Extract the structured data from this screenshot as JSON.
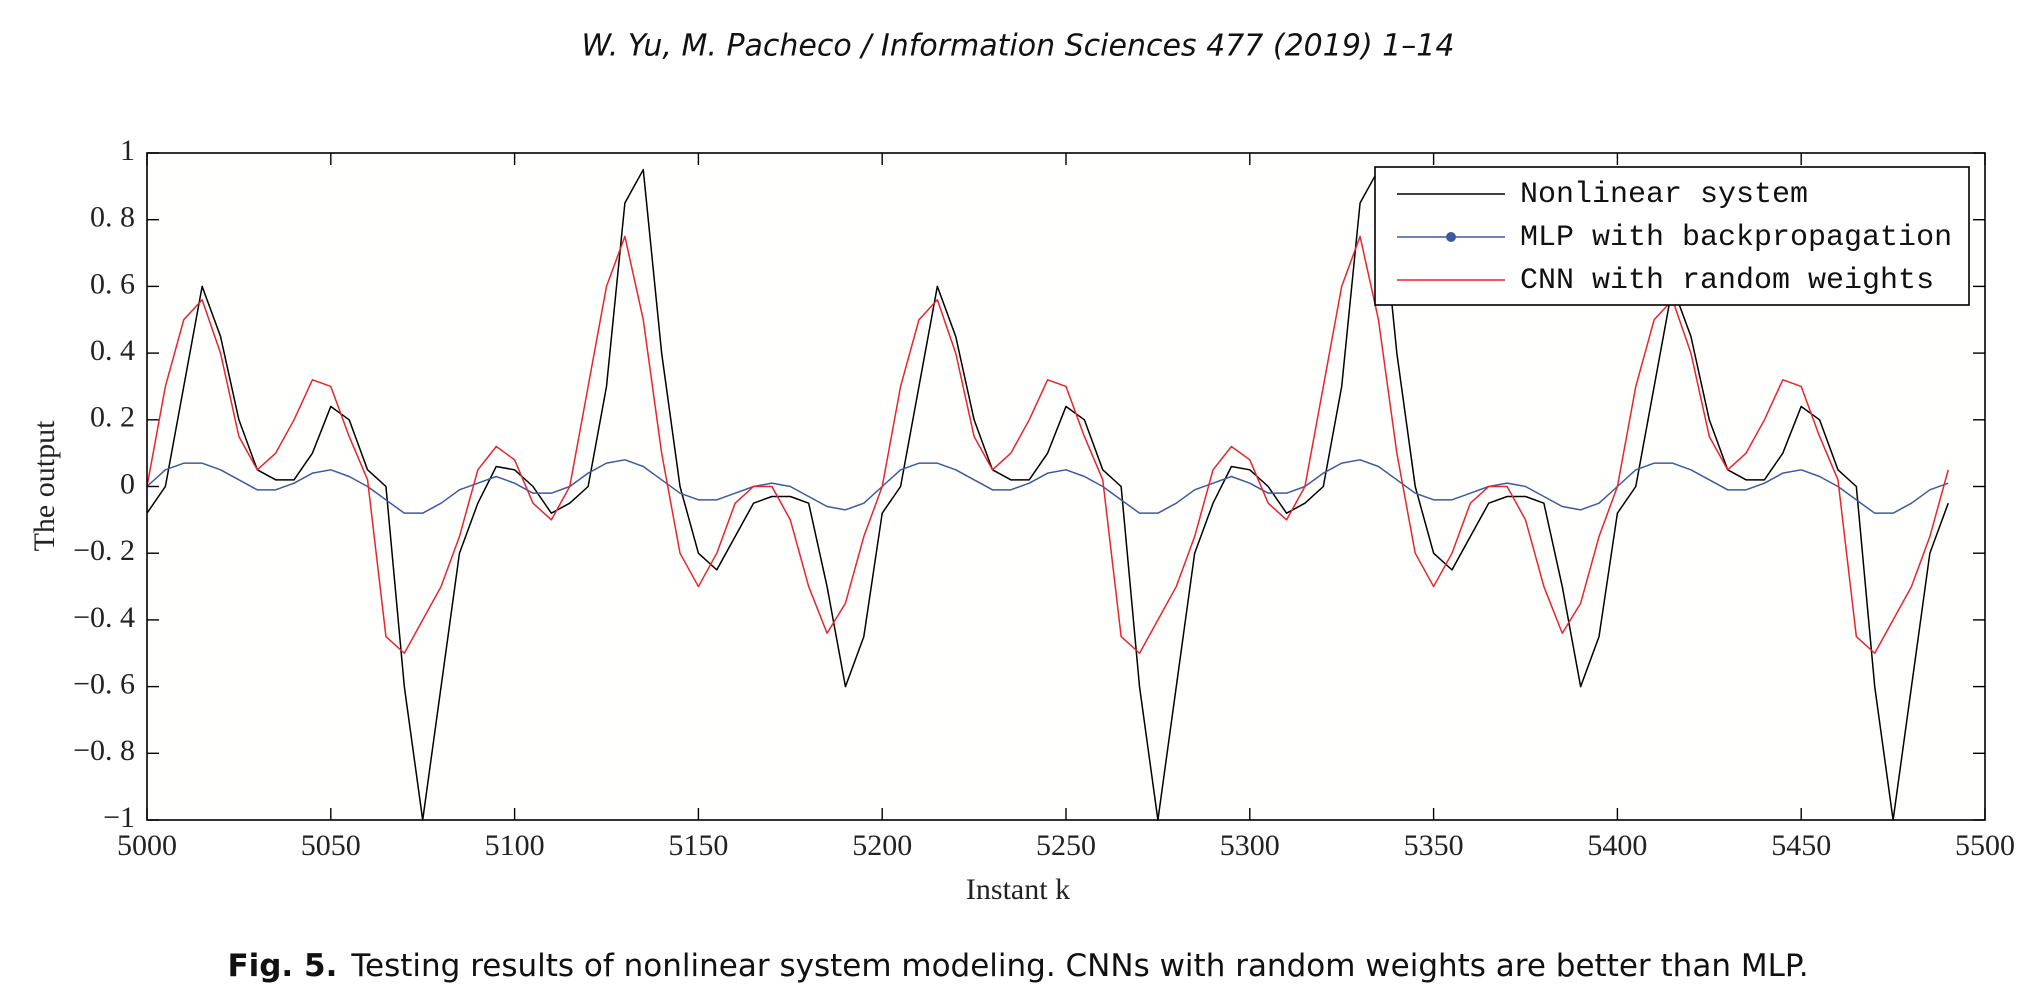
{
  "header": {
    "text": "W. Yu, M. Pacheco / Information Sciences 477 (2019) 1–14"
  },
  "caption": {
    "label": "Fig. 5.",
    "text": "Testing results of nonlinear system modeling. CNNs with random weights are better than MLP."
  },
  "chart_data": {
    "type": "line",
    "xlabel": "Instant k",
    "ylabel": "The output",
    "xlim": [
      5000,
      5500
    ],
    "ylim": [
      -1,
      1
    ],
    "xticks": [
      5000,
      5050,
      5100,
      5150,
      5200,
      5250,
      5300,
      5350,
      5400,
      5450,
      5500
    ],
    "yticks": [
      {
        "value": -1,
        "label": "−1"
      },
      {
        "value": -0.8,
        "label": "−0. 8"
      },
      {
        "value": -0.6,
        "label": "−0. 6"
      },
      {
        "value": -0.4,
        "label": "−0. 4"
      },
      {
        "value": -0.2,
        "label": "−0. 2"
      },
      0,
      {
        "value": 0.2,
        "label": "0. 2"
      },
      {
        "value": 0.4,
        "label": "0. 4"
      },
      {
        "value": 0.6,
        "label": "0. 6"
      },
      {
        "value": 0.8,
        "label": "0. 8"
      },
      1
    ],
    "legend": "upper right",
    "x": [
      5000,
      5005,
      5010,
      5015,
      5020,
      5025,
      5030,
      5035,
      5040,
      5045,
      5050,
      5055,
      5060,
      5065,
      5070,
      5075,
      5080,
      5085,
      5090,
      5095,
      5100,
      5105,
      5110,
      5115,
      5120,
      5125,
      5130,
      5135,
      5140,
      5145,
      5150,
      5155,
      5160,
      5165,
      5170,
      5175,
      5180,
      5185,
      5190,
      5195,
      5200,
      5205,
      5210,
      5215,
      5220,
      5225,
      5230,
      5235,
      5240,
      5245,
      5250,
      5255,
      5260,
      5265,
      5270,
      5275,
      5280,
      5285,
      5290,
      5295,
      5300,
      5305,
      5310,
      5315,
      5320,
      5325,
      5330,
      5335,
      5340,
      5345,
      5350,
      5355,
      5360,
      5365,
      5370,
      5375,
      5380,
      5385,
      5390,
      5395,
      5400,
      5405,
      5410,
      5415,
      5420,
      5425,
      5430,
      5435,
      5440,
      5445,
      5450,
      5455,
      5460,
      5465,
      5470,
      5475,
      5480,
      5485,
      5490
    ],
    "series": [
      {
        "name": "Nonlinear system",
        "color": "#000000",
        "values": [
          -0.08,
          0.0,
          0.3,
          0.6,
          0.45,
          0.2,
          0.05,
          0.02,
          0.02,
          0.1,
          0.24,
          0.2,
          0.05,
          0.0,
          -0.6,
          -1.0,
          -0.6,
          -0.2,
          -0.05,
          0.06,
          0.05,
          0.0,
          -0.08,
          -0.05,
          0.0,
          0.3,
          0.85,
          0.95,
          0.4,
          0.0,
          -0.2,
          -0.25,
          -0.15,
          -0.05,
          -0.03,
          -0.03,
          -0.05,
          -0.3,
          -0.6,
          -0.45,
          -0.08,
          0.0,
          0.3,
          0.6,
          0.45,
          0.2,
          0.05,
          0.02,
          0.02,
          0.1,
          0.24,
          0.2,
          0.05,
          0.0,
          -0.6,
          -1.0,
          -0.6,
          -0.2,
          -0.05,
          0.06,
          0.05,
          0.0,
          -0.08,
          -0.05,
          0.0,
          0.3,
          0.85,
          0.95,
          0.4,
          0.0,
          -0.2,
          -0.25,
          -0.15,
          -0.05,
          -0.03,
          -0.03,
          -0.05,
          -0.3,
          -0.6,
          -0.45,
          -0.08,
          0.0,
          0.3,
          0.6,
          0.45,
          0.2,
          0.05,
          0.02,
          0.02,
          0.1,
          0.24,
          0.2,
          0.05,
          0.0,
          -0.6,
          -1.0,
          -0.6,
          -0.2,
          -0.05
        ]
      },
      {
        "name": "MLP with backpropagation",
        "color": "#3c5aa0",
        "marker": "o",
        "values": [
          0.0,
          0.05,
          0.07,
          0.07,
          0.05,
          0.02,
          -0.01,
          -0.01,
          0.01,
          0.04,
          0.05,
          0.03,
          0.0,
          -0.04,
          -0.08,
          -0.08,
          -0.05,
          -0.01,
          0.01,
          0.03,
          0.01,
          -0.02,
          -0.02,
          0.0,
          0.04,
          0.07,
          0.08,
          0.06,
          0.02,
          -0.02,
          -0.04,
          -0.04,
          -0.02,
          0.0,
          0.01,
          0.0,
          -0.03,
          -0.06,
          -0.07,
          -0.05,
          0.0,
          0.05,
          0.07,
          0.07,
          0.05,
          0.02,
          -0.01,
          -0.01,
          0.01,
          0.04,
          0.05,
          0.03,
          0.0,
          -0.04,
          -0.08,
          -0.08,
          -0.05,
          -0.01,
          0.01,
          0.03,
          0.01,
          -0.02,
          -0.02,
          0.0,
          0.04,
          0.07,
          0.08,
          0.06,
          0.02,
          -0.02,
          -0.04,
          -0.04,
          -0.02,
          0.0,
          0.01,
          0.0,
          -0.03,
          -0.06,
          -0.07,
          -0.05,
          0.0,
          0.05,
          0.07,
          0.07,
          0.05,
          0.02,
          -0.01,
          -0.01,
          0.01,
          0.04,
          0.05,
          0.03,
          0.0,
          -0.04,
          -0.08,
          -0.08,
          -0.05,
          -0.01,
          0.01
        ]
      },
      {
        "name": "CNN with random weights",
        "color": "#e8242c",
        "values": [
          0.0,
          0.3,
          0.5,
          0.56,
          0.4,
          0.15,
          0.05,
          0.1,
          0.2,
          0.32,
          0.3,
          0.15,
          0.02,
          -0.45,
          -0.5,
          -0.4,
          -0.3,
          -0.15,
          0.05,
          0.12,
          0.08,
          -0.05,
          -0.1,
          0.0,
          0.3,
          0.6,
          0.75,
          0.5,
          0.1,
          -0.2,
          -0.3,
          -0.2,
          -0.05,
          0.0,
          0.0,
          -0.1,
          -0.3,
          -0.44,
          -0.35,
          -0.15,
          0.0,
          0.3,
          0.5,
          0.56,
          0.4,
          0.15,
          0.05,
          0.1,
          0.2,
          0.32,
          0.3,
          0.15,
          0.02,
          -0.45,
          -0.5,
          -0.4,
          -0.3,
          -0.15,
          0.05,
          0.12,
          0.08,
          -0.05,
          -0.1,
          0.0,
          0.3,
          0.6,
          0.75,
          0.5,
          0.1,
          -0.2,
          -0.3,
          -0.2,
          -0.05,
          0.0,
          0.0,
          -0.1,
          -0.3,
          -0.44,
          -0.35,
          -0.15,
          0.0,
          0.3,
          0.5,
          0.56,
          0.4,
          0.15,
          0.05,
          0.1,
          0.2,
          0.32,
          0.3,
          0.15,
          0.02,
          -0.45,
          -0.5,
          -0.4,
          -0.3,
          -0.15,
          0.05
        ]
      }
    ]
  }
}
